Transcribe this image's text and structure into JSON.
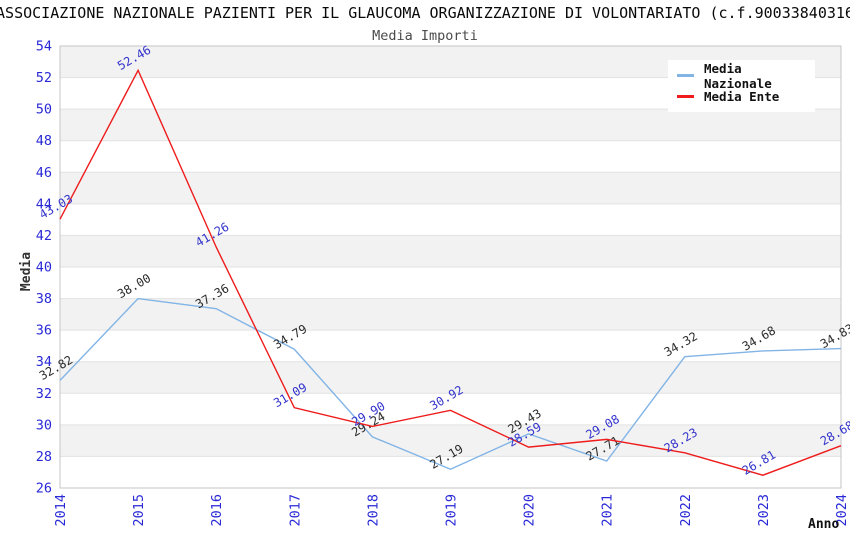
{
  "chart_data": {
    "type": "line",
    "title": "ASSOCIAZIONE NAZIONALE PAZIENTI PER IL GLAUCOMA ORGANIZZAZIONE DI VOLONTARIATO (c.f.90033840316",
    "subtitle": "Media Importi",
    "xlabel": "Anno",
    "ylabel": "Media",
    "x": [
      2014,
      2015,
      2016,
      2017,
      2018,
      2019,
      2020,
      2021,
      2022,
      2023,
      2024
    ],
    "ylim": [
      26,
      54
    ],
    "ytick_step": 2,
    "grid": true,
    "legend_position": "top-right",
    "band_colors": [
      "#f2f2f2",
      "#ffffff"
    ],
    "gridline_color": "#e2e2e2",
    "border_color": "#c6c6c6",
    "tick_label_color": "#2929d6",
    "series": [
      {
        "name": "Media Nazionale",
        "color": "#82b4e6",
        "label_color": "#2b2b2b",
        "values": [
          32.82,
          38.0,
          37.36,
          34.79,
          29.24,
          27.19,
          29.43,
          27.71,
          34.32,
          34.68,
          34.83
        ]
      },
      {
        "name": "Media Ente",
        "color": "#ee1c1c",
        "label_color": "#3333cc",
        "values": [
          43.03,
          52.46,
          41.26,
          31.09,
          29.9,
          30.92,
          28.59,
          29.08,
          28.23,
          26.81,
          28.68
        ]
      }
    ]
  }
}
